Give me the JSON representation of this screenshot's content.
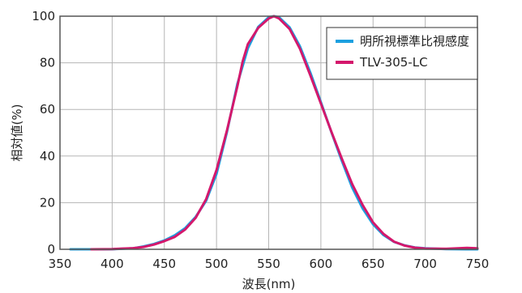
{
  "chart_data": {
    "type": "line",
    "title": "",
    "xlabel": "波長(nm)",
    "ylabel": "相対値(%)",
    "xlim": [
      350,
      750
    ],
    "ylim": [
      0,
      100
    ],
    "xticks": [
      350,
      400,
      450,
      500,
      550,
      600,
      650,
      700,
      750
    ],
    "yticks": [
      0,
      20,
      40,
      60,
      80,
      100
    ],
    "grid": true,
    "legend_position": "top-right",
    "series": [
      {
        "name": "明所視標準比視感度",
        "color": "#1ca0e0",
        "x": [
          360,
          380,
          400,
          420,
          430,
          440,
          450,
          460,
          470,
          480,
          490,
          500,
          510,
          520,
          530,
          540,
          550,
          555,
          560,
          570,
          580,
          590,
          600,
          610,
          620,
          630,
          640,
          650,
          660,
          670,
          680,
          690,
          700,
          720,
          740,
          750
        ],
        "y": [
          0,
          0,
          0.04,
          0.4,
          1.2,
          2.3,
          3.8,
          6,
          9.1,
          13.9,
          20.8,
          32.3,
          50.3,
          71,
          86.2,
          95.4,
          99.5,
          100,
          99.5,
          95.2,
          87,
          75.7,
          63.1,
          50.3,
          38.1,
          26.5,
          17.5,
          10.7,
          6.1,
          3.2,
          1.7,
          0.8,
          0.4,
          0.1,
          0,
          0
        ]
      },
      {
        "name": "TLV-305-LC",
        "color": "#d4186c",
        "x": [
          380,
          400,
          410,
          420,
          430,
          440,
          450,
          460,
          470,
          480,
          490,
          500,
          510,
          520,
          525,
          530,
          540,
          550,
          555,
          560,
          570,
          580,
          590,
          600,
          610,
          620,
          630,
          640,
          650,
          660,
          670,
          680,
          690,
          700,
          720,
          740,
          750
        ],
        "y": [
          0,
          0.1,
          0.3,
          0.5,
          1,
          2,
          3.5,
          5.3,
          8.5,
          13.5,
          21.5,
          34,
          51,
          70,
          80.5,
          88,
          95,
          99,
          100,
          99,
          94.5,
          86,
          74.5,
          62.5,
          50.5,
          39,
          28,
          19,
          11.5,
          6.6,
          3.3,
          1.6,
          0.7,
          0.3,
          0.2,
          0.6,
          0.4
        ]
      }
    ]
  }
}
